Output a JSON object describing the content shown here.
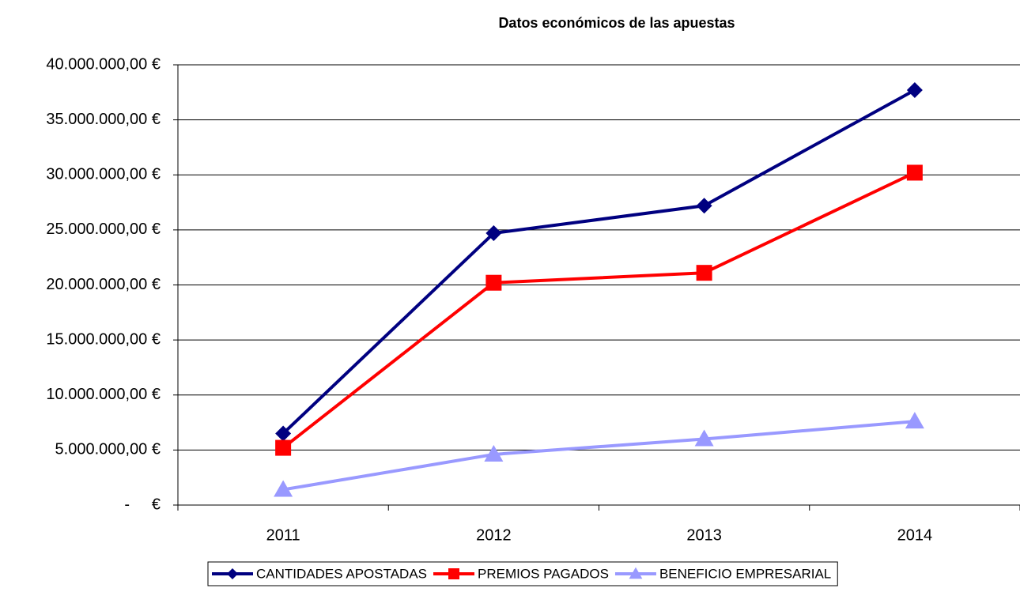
{
  "chart_data": {
    "type": "line",
    "title": "Datos económicos de las apuestas",
    "categories": [
      "2011",
      "2012",
      "2013",
      "2014"
    ],
    "series": [
      {
        "name": "CANTIDADES APOSTADAS",
        "color": "#000080",
        "marker": "diamond",
        "values": [
          6500000,
          24700000,
          27200000,
          37700000
        ]
      },
      {
        "name": "PREMIOS PAGADOS",
        "color": "#ff0000",
        "marker": "square",
        "values": [
          5200000,
          20200000,
          21100000,
          30200000
        ]
      },
      {
        "name": "BENEFICIO EMPRESARIAL",
        "color": "#9999ff",
        "marker": "triangle",
        "values": [
          1400000,
          4600000,
          6000000,
          7600000
        ]
      }
    ],
    "ylim": [
      0,
      40000000
    ],
    "yticks": [
      {
        "value": 0,
        "label": "-     €"
      },
      {
        "value": 5000000,
        "label": "5.000.000,00 €"
      },
      {
        "value": 10000000,
        "label": "10.000.000,00 €"
      },
      {
        "value": 15000000,
        "label": "15.000.000,00 €"
      },
      {
        "value": 20000000,
        "label": "20.000.000,00 €"
      },
      {
        "value": 25000000,
        "label": "25.000.000,00 €"
      },
      {
        "value": 30000000,
        "label": "30.000.000,00 €"
      },
      {
        "value": 35000000,
        "label": "35.000.000,00 €"
      },
      {
        "value": 40000000,
        "label": "40.000.000,00 €"
      }
    ],
    "grid": true,
    "legend": "bottom"
  }
}
